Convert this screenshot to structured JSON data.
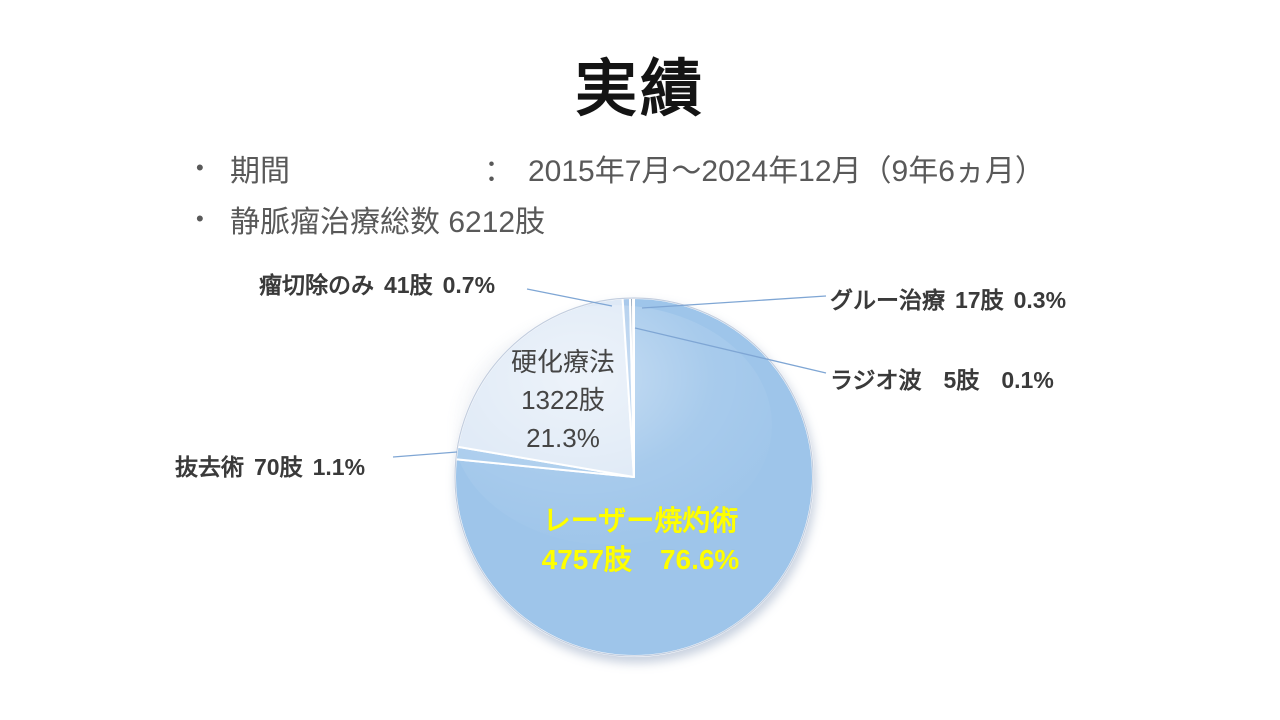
{
  "slide": {
    "title": "実績",
    "bullets": [
      {
        "label": "期間",
        "separator": "：",
        "value": "2015年7月～2024年12月（9年6ヵ月）"
      },
      {
        "label": "静脈瘤治療総数 6212肢",
        "separator": "",
        "value": ""
      }
    ]
  },
  "colors": {
    "pie_main_blue": "#9EC5EA",
    "pie_light_blue": "#DEE9F6",
    "leader_line": "#7FA6D4",
    "laser_label_text": "#FFFF00",
    "body_text": "#595959",
    "outer_label_text": "#3A3A3A"
  },
  "chart_data": {
    "type": "pie",
    "unit": "肢",
    "total": 6212,
    "total_label": "静脈瘤治療総数 6212肢",
    "start_angle": "12 o'clock, clockwise",
    "legend_position": "none (direct labels with leader lines)",
    "series": [
      {
        "key": "laser",
        "name": "レーザー焼灼術",
        "value": 4757,
        "limbs": "4757肢",
        "pct": "76.6%",
        "color": "#9EC5EA",
        "label_color": "#FFFF00",
        "label_placement": "inside"
      },
      {
        "key": "stripping",
        "name": "抜去術",
        "value": 70,
        "limbs": "70肢",
        "pct": "1.1%",
        "color": "#A6CAEC",
        "label_placement": "outside-left"
      },
      {
        "key": "sclerotherapy",
        "name": "硬化療法",
        "value": 1322,
        "limbs": "1322肢",
        "pct": "21.3%",
        "color": "#DEE9F6",
        "label_placement": "inside"
      },
      {
        "key": "resection-only",
        "name": "瘤切除のみ",
        "value": 41,
        "limbs": "41肢",
        "pct": "0.7%",
        "color": "#A9C9EB",
        "label_placement": "outside-top-left"
      },
      {
        "key": "glue",
        "name": "グルー治療",
        "value": 17,
        "limbs": "17肢",
        "pct": "0.3%",
        "color": "#97A9BD",
        "label_placement": "outside-top-right"
      },
      {
        "key": "rf",
        "name": "ラジオ波",
        "value": 5,
        "limbs": "5肢",
        "pct": "0.1%",
        "color": "#B3C9DF",
        "label_placement": "outside-right"
      }
    ]
  }
}
